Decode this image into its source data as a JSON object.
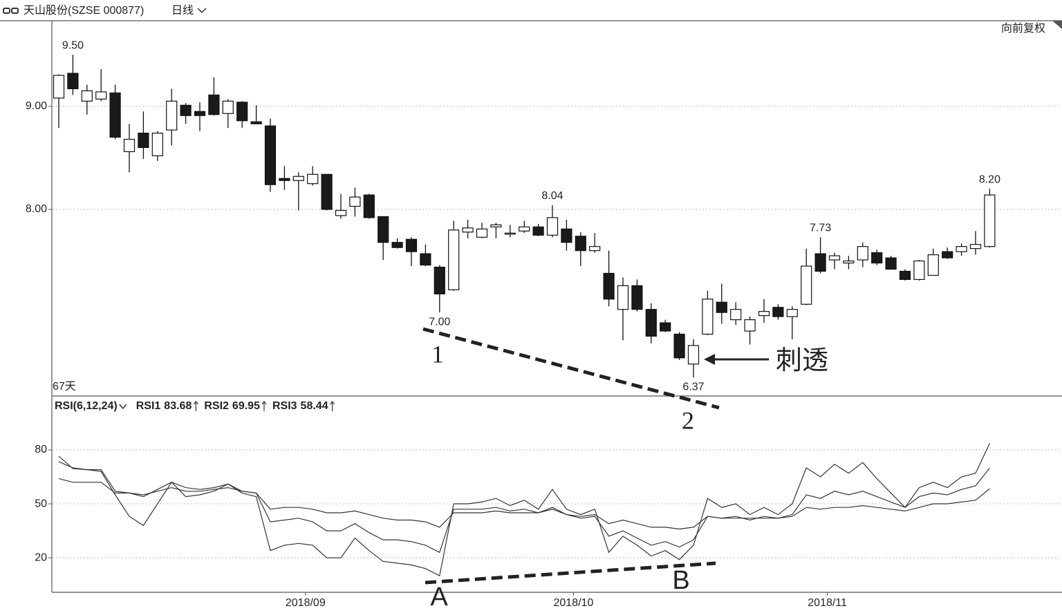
{
  "header": {
    "title": "天山股份(SZSE 000877)",
    "period": "日线",
    "adjust": "向前复权"
  },
  "chart_data": [
    {
      "type": "candlestick",
      "count_label": "67天",
      "categories": [
        null,
        null,
        null,
        null,
        null,
        null,
        null,
        null,
        null,
        null,
        null,
        null,
        null,
        null,
        null,
        null,
        null,
        "2018/09",
        null,
        null,
        null,
        null,
        null,
        null,
        null,
        null,
        null,
        null,
        null,
        null,
        null,
        null,
        null,
        null,
        null,
        null,
        "2018/10",
        null,
        null,
        null,
        null,
        null,
        null,
        null,
        null,
        null,
        null,
        null,
        null,
        null,
        null,
        null,
        null,
        null,
        "2018/11",
        null,
        null,
        null,
        null,
        null,
        null,
        null,
        null,
        null,
        null,
        null,
        null
      ],
      "open": [
        9.08,
        9.32,
        9.05,
        9.07,
        9.13,
        8.56,
        8.74,
        8.52,
        8.77,
        9.01,
        8.95,
        9.11,
        8.93,
        9.04,
        8.85,
        8.81,
        8.3,
        8.28,
        8.25,
        8.34,
        7.94,
        8.03,
        8.14,
        7.93,
        7.68,
        7.71,
        7.57,
        7.44,
        7.22,
        7.78,
        7.73,
        7.83,
        7.77,
        7.79,
        7.83,
        7.75,
        7.81,
        7.74,
        7.6,
        7.38,
        7.03,
        7.26,
        7.03,
        6.9,
        6.79,
        6.5,
        6.79,
        7.1,
        6.93,
        6.82,
        6.97,
        7.05,
        6.96,
        7.08,
        7.57,
        7.51,
        7.48,
        7.51,
        7.58,
        7.53,
        7.4,
        7.32,
        7.36,
        7.59,
        7.59,
        7.62,
        7.64
      ],
      "high": [
        9.31,
        9.5,
        9.21,
        9.36,
        9.21,
        8.83,
        8.95,
        8.76,
        9.17,
        9.03,
        9.04,
        9.28,
        9.07,
        9.05,
        9.01,
        8.88,
        8.42,
        8.36,
        8.42,
        8.34,
        8.15,
        8.21,
        8.15,
        7.93,
        7.72,
        7.73,
        7.66,
        7.46,
        7.89,
        7.9,
        7.87,
        7.87,
        7.85,
        7.89,
        7.86,
        8.04,
        7.9,
        7.78,
        7.77,
        7.6,
        7.34,
        7.32,
        7.09,
        6.93,
        6.81,
        6.74,
        7.21,
        7.28,
        7.1,
        6.96,
        7.13,
        7.08,
        7.06,
        7.62,
        7.73,
        7.58,
        7.55,
        7.68,
        7.61,
        7.55,
        7.42,
        7.51,
        7.62,
        7.63,
        7.67,
        7.79,
        8.2
      ],
      "low": [
        8.79,
        9.11,
        8.92,
        9.05,
        8.68,
        8.36,
        8.49,
        8.47,
        8.62,
        8.83,
        8.76,
        8.91,
        8.79,
        8.79,
        8.83,
        8.17,
        8.19,
        7.99,
        8.23,
        7.99,
        7.91,
        7.93,
        7.91,
        7.51,
        7.62,
        7.45,
        7.45,
        7.0,
        7.21,
        7.72,
        7.72,
        7.72,
        7.73,
        7.77,
        7.74,
        7.73,
        7.6,
        7.45,
        7.58,
        7.06,
        6.73,
        7.01,
        6.7,
        6.81,
        6.54,
        6.37,
        6.78,
        6.89,
        6.88,
        6.69,
        6.9,
        6.93,
        6.74,
        7.07,
        7.38,
        7.42,
        7.42,
        7.44,
        7.46,
        7.42,
        7.31,
        7.31,
        7.36,
        7.52,
        7.55,
        7.56,
        7.63
      ],
      "close": [
        9.3,
        9.17,
        9.15,
        9.14,
        8.7,
        8.68,
        8.6,
        8.74,
        9.05,
        8.91,
        8.91,
        8.92,
        9.05,
        8.86,
        8.83,
        8.24,
        8.28,
        8.32,
        8.34,
        8.0,
        7.99,
        8.12,
        7.92,
        7.68,
        7.63,
        7.59,
        7.46,
        7.18,
        7.8,
        7.82,
        7.81,
        7.85,
        7.77,
        7.83,
        7.75,
        7.92,
        7.68,
        7.6,
        7.64,
        7.13,
        7.26,
        7.03,
        6.77,
        6.82,
        6.56,
        6.68,
        7.13,
        7.0,
        7.03,
        6.93,
        7.01,
        6.96,
        7.03,
        7.45,
        7.4,
        7.55,
        7.5,
        7.64,
        7.48,
        7.42,
        7.32,
        7.5,
        7.56,
        7.53,
        7.64,
        7.66,
        8.14
      ],
      "high_labels": [
        null,
        "9.50",
        null,
        null,
        null,
        null,
        null,
        null,
        null,
        null,
        null,
        null,
        null,
        null,
        null,
        null,
        null,
        null,
        null,
        null,
        null,
        null,
        null,
        null,
        null,
        null,
        null,
        null,
        null,
        null,
        null,
        null,
        null,
        null,
        null,
        "8.04",
        null,
        null,
        null,
        null,
        null,
        null,
        null,
        null,
        null,
        null,
        null,
        null,
        null,
        null,
        null,
        null,
        null,
        null,
        "7.73",
        null,
        null,
        null,
        null,
        null,
        null,
        null,
        null,
        null,
        null,
        null,
        "8.20"
      ],
      "low_labels": [
        null,
        null,
        null,
        null,
        null,
        null,
        null,
        null,
        null,
        null,
        null,
        null,
        null,
        null,
        null,
        null,
        null,
        null,
        null,
        null,
        null,
        null,
        null,
        null,
        null,
        null,
        null,
        "7.00",
        null,
        null,
        null,
        null,
        null,
        null,
        null,
        null,
        null,
        null,
        null,
        null,
        null,
        null,
        null,
        null,
        null,
        "6.37",
        null,
        null,
        null,
        null,
        null,
        null,
        null,
        null,
        null,
        null,
        null,
        null,
        null,
        null,
        null,
        null,
        null,
        null,
        null,
        null,
        null
      ],
      "up_color": "#ffffff",
      "down_color": "#1a1a1a",
      "ylim": [
        6.19,
        9.83
      ],
      "yticks": [
        {
          "value": 9,
          "label": "9.00"
        },
        {
          "value": 8,
          "label": "8.00"
        }
      ],
      "grid": true,
      "annotations": [
        "1",
        "2",
        "刺透"
      ]
    },
    {
      "type": "line",
      "title": "RSI(6,12,24)",
      "series": [
        {
          "name": "RSI1",
          "color": "#333333",
          "values": [
            76.5,
            69.6,
            69,
            68,
            55,
            43,
            38,
            50,
            62,
            54,
            55,
            57,
            61,
            56,
            54,
            24,
            27,
            28,
            27,
            20,
            20,
            31,
            24,
            18,
            17,
            16,
            14,
            10,
            50,
            50,
            51,
            53,
            49,
            52,
            47,
            58,
            47,
            44,
            47,
            23,
            32,
            27,
            21,
            24,
            19,
            27,
            53,
            48,
            50,
            44,
            48,
            44,
            50,
            70,
            65,
            72,
            67,
            73,
            64,
            56,
            48,
            59,
            62,
            59,
            65,
            67,
            83.68
          ]
        },
        {
          "name": "RSI2",
          "color": "#333333",
          "values": [
            73.5,
            70,
            69,
            69,
            57,
            56,
            54,
            58,
            62,
            59,
            58,
            59,
            61,
            57,
            56,
            40,
            41,
            42,
            40,
            35,
            35,
            39,
            34,
            30,
            30,
            29,
            27,
            23,
            47,
            47,
            47,
            48,
            46,
            47,
            45,
            48,
            44,
            42,
            43,
            32,
            35,
            31,
            27,
            29,
            26,
            30,
            43,
            42,
            43,
            41,
            43,
            42,
            44,
            55,
            53,
            57,
            55,
            57,
            54,
            51,
            48,
            54,
            56,
            55,
            58,
            60,
            69.95
          ]
        },
        {
          "name": "RSI3",
          "color": "#333333",
          "values": [
            64,
            62,
            62,
            62,
            56,
            56,
            55,
            57,
            59,
            57,
            57,
            58,
            59,
            57,
            56,
            47,
            48,
            48,
            47,
            45,
            45,
            46,
            44,
            42,
            41,
            41,
            40,
            37,
            45,
            45,
            45,
            46,
            45,
            45,
            45,
            47,
            44,
            43,
            44,
            39,
            41,
            39,
            37,
            37,
            36,
            37,
            43,
            42,
            42,
            42,
            42,
            42,
            43,
            48,
            47,
            48,
            48,
            49,
            48,
            47,
            46,
            48,
            50,
            50,
            51,
            52,
            58.44
          ]
        }
      ],
      "ylim": [
        0.8,
        110
      ],
      "yticks": [
        80,
        50,
        20
      ],
      "grid": true,
      "annotations": [
        "A",
        "B"
      ]
    }
  ]
}
